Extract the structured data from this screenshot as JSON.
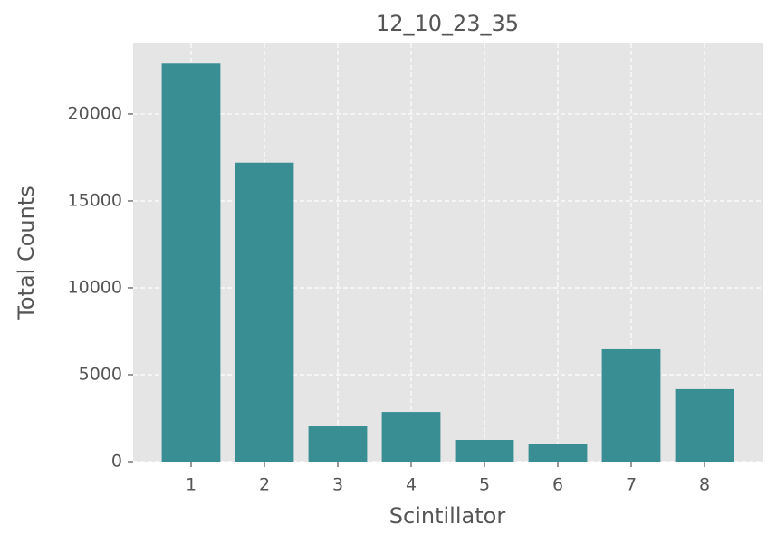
{
  "chart_data": {
    "type": "bar",
    "title": "12_10_23_35",
    "x_label": "Scintillator",
    "y_label": "Total Counts",
    "x": [
      1,
      2,
      3,
      4,
      5,
      6,
      7,
      8
    ],
    "values": [
      22900,
      17200,
      2030,
      2860,
      1250,
      990,
      6460,
      4170
    ],
    "color": "#388e93",
    "xlim": [
      0.21,
      8.79
    ],
    "xticks": [
      1,
      2,
      3,
      4,
      5,
      6,
      7,
      8
    ],
    "ylim": [
      0,
      24060
    ],
    "yticks": [
      0,
      5000,
      10000,
      15000,
      20000
    ],
    "grid": true
  }
}
